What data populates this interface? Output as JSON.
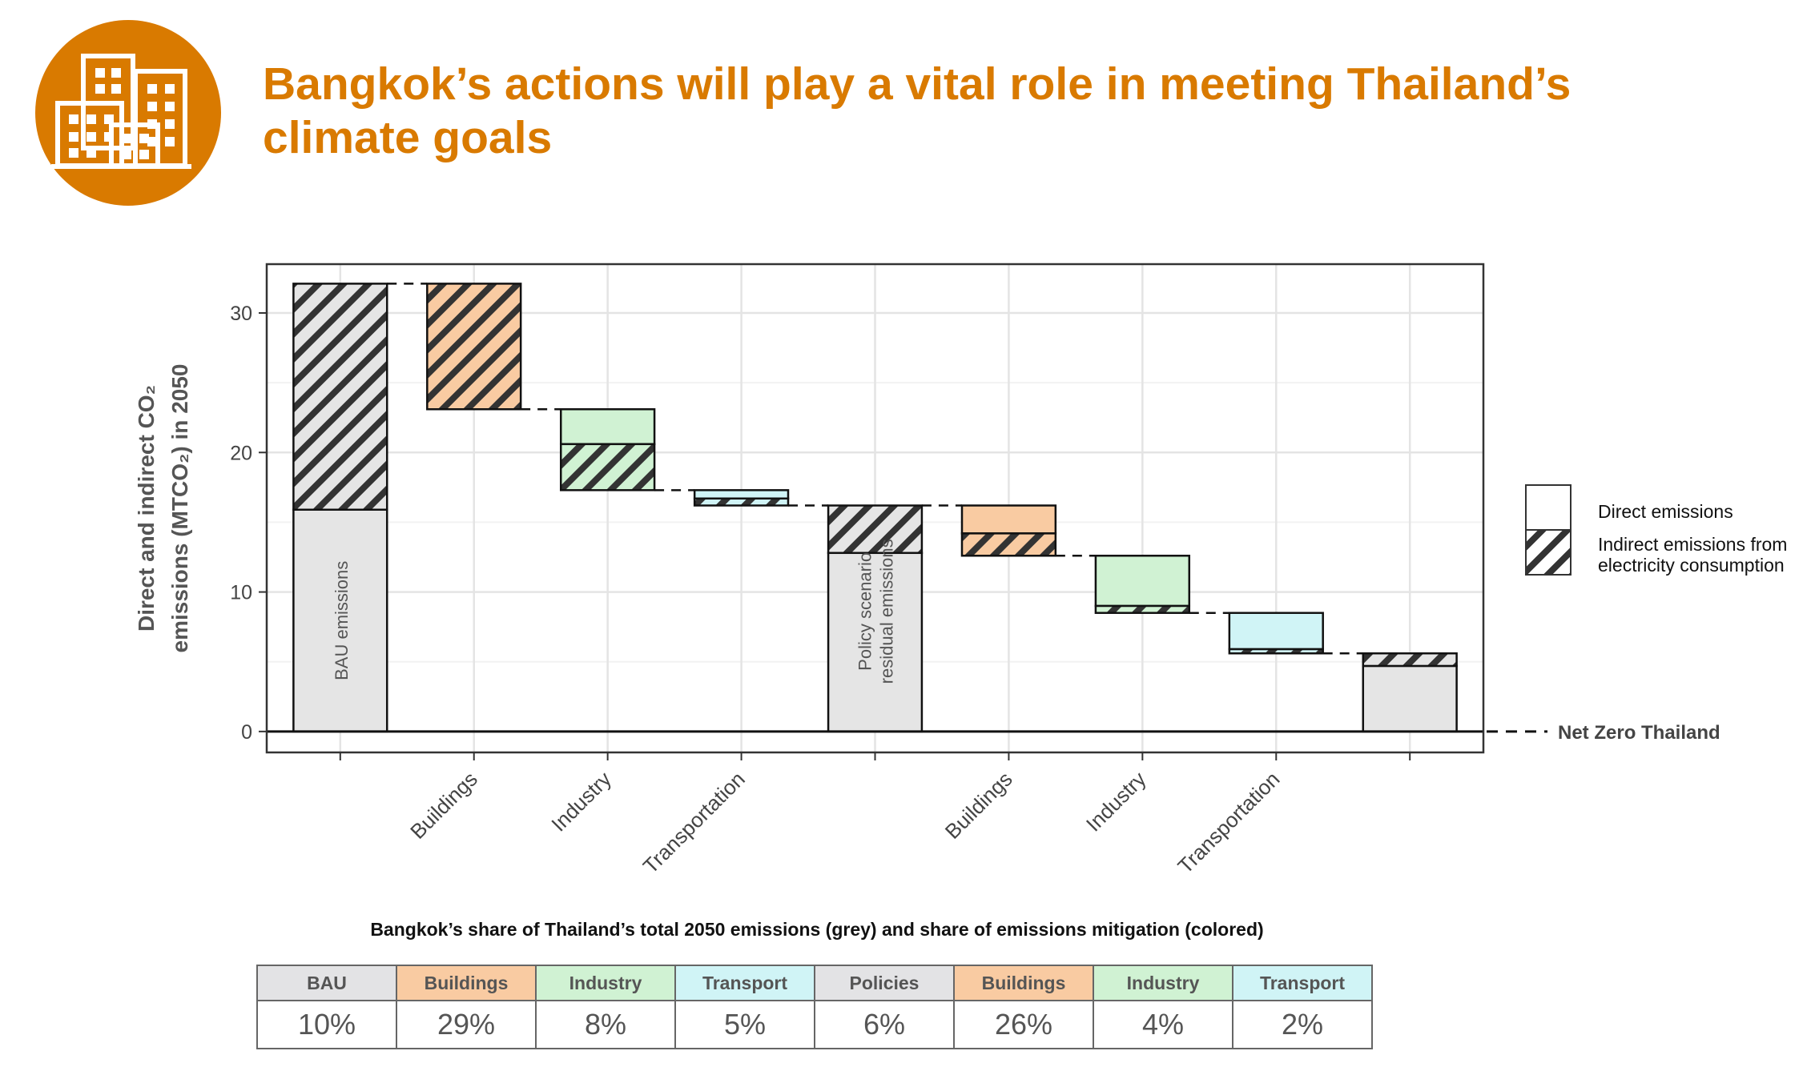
{
  "header": {
    "title": "Bangkok’s actions will play a vital role in meeting Thailand’s climate goals",
    "icon": "city-buildings-icon",
    "icon_color": "#d97a00"
  },
  "chart_data": {
    "type": "waterfall",
    "ylabel_line1": "Direct and indirect CO₂",
    "ylabel_line2": "emissions (MTCO₂) in 2050",
    "ylim": [
      -1.5,
      33.5
    ],
    "yticks": [
      0,
      10,
      20,
      30
    ],
    "grid": true,
    "colors": {
      "grey": "#e5e5e5",
      "buildings": "#f9cba2",
      "industry": "#d0f2d3",
      "transport": "#d0f4f6"
    },
    "bars": [
      {
        "category": "",
        "label": "BAU emissions",
        "kind": "total",
        "color": "grey",
        "base": 0,
        "direct": 15.9,
        "indirect": 16.2
      },
      {
        "category": "Buildings",
        "kind": "reduction",
        "color": "buildings",
        "top": 32.1,
        "direct": 0,
        "indirect": 9.0
      },
      {
        "category": "Industry",
        "kind": "reduction",
        "color": "industry",
        "top": 23.1,
        "direct": 2.5,
        "indirect": 3.3
      },
      {
        "category": "Transportation",
        "kind": "reduction",
        "color": "transport",
        "top": 17.3,
        "direct": 0.6,
        "indirect": 0.5
      },
      {
        "category": "",
        "label_line1": "Policy scenario",
        "label_line2": "residual emissions",
        "kind": "total",
        "color": "grey",
        "base": 0,
        "direct": 12.8,
        "indirect": 3.4
      },
      {
        "category": "Buildings",
        "kind": "reduction",
        "color": "buildings",
        "top": 16.2,
        "direct": 2.0,
        "indirect": 1.6
      },
      {
        "category": "Industry",
        "kind": "reduction",
        "color": "industry",
        "top": 12.6,
        "direct": 3.6,
        "indirect": 0.5
      },
      {
        "category": "Transportation",
        "kind": "reduction",
        "color": "transport",
        "top": 8.5,
        "direct": 2.6,
        "indirect": 0.3
      },
      {
        "category": "",
        "kind": "total",
        "color": "grey",
        "base": 0,
        "direct": 4.7,
        "indirect": 0.9
      }
    ],
    "legend": {
      "position": "right",
      "direct": "Direct emissions",
      "indirect_line1": "Indirect emissions from",
      "indirect_line2": "electricity consumption"
    },
    "net_zero_label": "Net Zero Thailand"
  },
  "share_table": {
    "title": "Bangkok’s share of Thailand’s total 2050 emissions (grey) and share of emissions mitigation (colored)",
    "columns": [
      {
        "label": "BAU",
        "value": "10%",
        "color": "#e3e3e5"
      },
      {
        "label": "Buildings",
        "value": "29%",
        "color": "#f9cba2"
      },
      {
        "label": "Industry",
        "value": "8%",
        "color": "#d0f2d3"
      },
      {
        "label": "Transport",
        "value": "5%",
        "color": "#d0f4f6"
      },
      {
        "label": "Policies",
        "value": "6%",
        "color": "#e3e3e5"
      },
      {
        "label": "Buildings",
        "value": "26%",
        "color": "#f9cba2"
      },
      {
        "label": "Industry",
        "value": "4%",
        "color": "#d0f2d3"
      },
      {
        "label": "Transport",
        "value": "2%",
        "color": "#d0f4f6"
      }
    ]
  }
}
